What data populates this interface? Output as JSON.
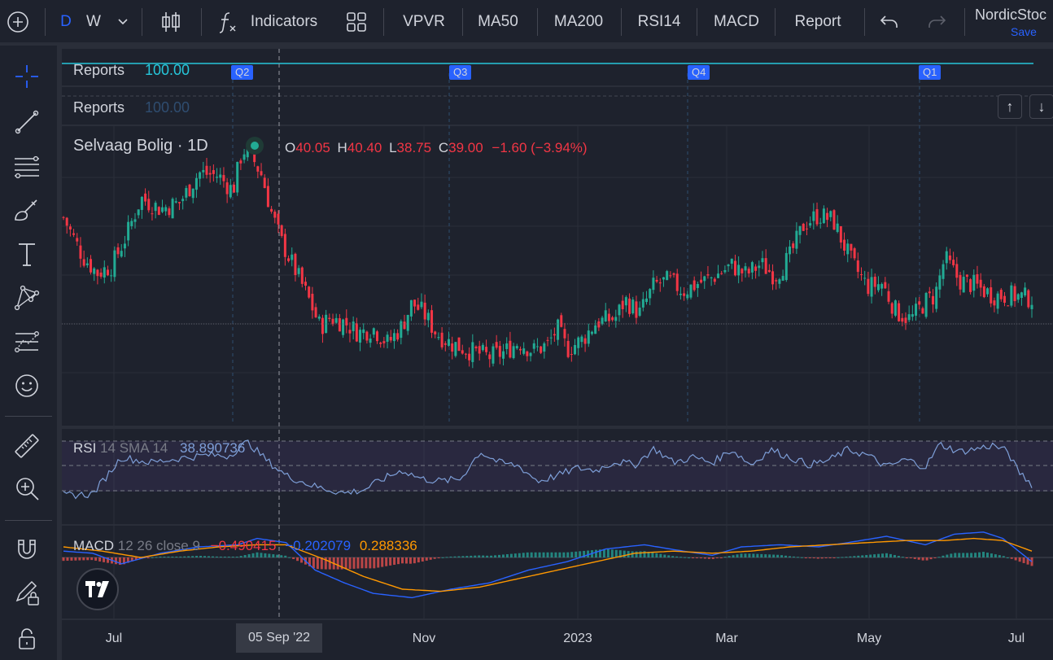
{
  "toolbar": {
    "interval_d": "D",
    "interval_w": "W",
    "indicators_label": "Indicators",
    "quick": [
      "VPVR",
      "MA50",
      "MA200",
      "RSI14",
      "MACD",
      "Report"
    ],
    "layout_name": "NordicStoc",
    "save_label": "Save"
  },
  "reports": {
    "row1_label": "Reports",
    "row1_value": "100.00",
    "row2_label": "Reports",
    "row2_value": "100.00",
    "quarters": [
      "Q2",
      "Q3",
      "Q4",
      "Q1"
    ]
  },
  "symbol": {
    "title": "Selvaag Bolig · 1D",
    "o_label": "O",
    "o_value": "40.05",
    "h_label": "H",
    "h_value": "40.40",
    "l_label": "L",
    "l_value": "38.75",
    "c_label": "C",
    "c_value": "39.00",
    "change": "−1.60 (−3.94%)"
  },
  "rsi": {
    "name": "RSI",
    "params": "14 SMA 14",
    "value": "38.890736"
  },
  "macd": {
    "name": "MACD",
    "params": "12 26 close 9",
    "hist_value": "−0.490415",
    "macd_value": "−0.202079",
    "signal_value": "0.288336"
  },
  "xaxis": {
    "labels": [
      "Jul",
      "Nov",
      "2023",
      "Mar",
      "May",
      "Jul"
    ],
    "crosshair_label": "05 Sep '22"
  },
  "colors": {
    "up": "#22ab94",
    "down": "#f23645",
    "rsi": "#7e9fd8",
    "macd_line": "#2962ff",
    "signal_line": "#ff9800",
    "accent": "#2962ff"
  },
  "chart_data": {
    "type": "candlestick",
    "title": "Selvaag Bolig · 1D",
    "x_range": [
      "2022-06",
      "2023-07"
    ],
    "close_path": [
      [
        0,
        44.2
      ],
      [
        0.02,
        41.6
      ],
      [
        0.035,
        40.5
      ],
      [
        0.05,
        41.0
      ],
      [
        0.065,
        43.0
      ],
      [
        0.08,
        45.5
      ],
      [
        0.1,
        44.8
      ],
      [
        0.12,
        45.2
      ],
      [
        0.14,
        47.2
      ],
      [
        0.16,
        47.0
      ],
      [
        0.175,
        46.0
      ],
      [
        0.185,
        48.8
      ],
      [
        0.195,
        48.2
      ],
      [
        0.205,
        47.0
      ],
      [
        0.215,
        44.5
      ],
      [
        0.225,
        42.6
      ],
      [
        0.24,
        40.6
      ],
      [
        0.255,
        38.5
      ],
      [
        0.265,
        36.9
      ],
      [
        0.275,
        37.5
      ],
      [
        0.29,
        37.2
      ],
      [
        0.305,
        36.5
      ],
      [
        0.32,
        36.8
      ],
      [
        0.335,
        35.8
      ],
      [
        0.35,
        37.0
      ],
      [
        0.36,
        38.5
      ],
      [
        0.372,
        37.8
      ],
      [
        0.385,
        36.5
      ],
      [
        0.4,
        35.8
      ],
      [
        0.42,
        35.3
      ],
      [
        0.44,
        34.9
      ],
      [
        0.455,
        35.2
      ],
      [
        0.47,
        35.9
      ],
      [
        0.485,
        35.3
      ],
      [
        0.5,
        35.7
      ],
      [
        0.51,
        36.8
      ],
      [
        0.52,
        35.4
      ],
      [
        0.535,
        36.0
      ],
      [
        0.55,
        37.2
      ],
      [
        0.57,
        37.5
      ],
      [
        0.58,
        38.7
      ],
      [
        0.595,
        37.8
      ],
      [
        0.61,
        39.7
      ],
      [
        0.625,
        40.0
      ],
      [
        0.64,
        39.3
      ],
      [
        0.655,
        39.8
      ],
      [
        0.67,
        40.2
      ],
      [
        0.69,
        41.0
      ],
      [
        0.705,
        40.4
      ],
      [
        0.72,
        41.1
      ],
      [
        0.735,
        40.3
      ],
      [
        0.75,
        41.6
      ],
      [
        0.765,
        43.8
      ],
      [
        0.78,
        44.4
      ],
      [
        0.795,
        44.0
      ],
      [
        0.805,
        42.5
      ],
      [
        0.815,
        41.1
      ],
      [
        0.83,
        39.6
      ],
      [
        0.845,
        39.8
      ],
      [
        0.86,
        37.9
      ],
      [
        0.875,
        37.4
      ],
      [
        0.89,
        38.6
      ],
      [
        0.9,
        39.0
      ],
      [
        0.91,
        41.5
      ],
      [
        0.925,
        40.0
      ],
      [
        0.94,
        39.7
      ],
      [
        0.96,
        39.0
      ],
      [
        0.98,
        39.0
      ],
      [
        1.0,
        38.8
      ]
    ],
    "y_range_visible": [
      34.0,
      49.5
    ],
    "rsi_path": [
      [
        0,
        30
      ],
      [
        0.03,
        31
      ],
      [
        0.06,
        65
      ],
      [
        0.09,
        60
      ],
      [
        0.12,
        64
      ],
      [
        0.15,
        67
      ],
      [
        0.17,
        66
      ],
      [
        0.19,
        79
      ],
      [
        0.21,
        62
      ],
      [
        0.23,
        48
      ],
      [
        0.26,
        38
      ],
      [
        0.29,
        32
      ],
      [
        0.31,
        35
      ],
      [
        0.33,
        45
      ],
      [
        0.35,
        53
      ],
      [
        0.37,
        45
      ],
      [
        0.39,
        43
      ],
      [
        0.41,
        45
      ],
      [
        0.43,
        70
      ],
      [
        0.45,
        60
      ],
      [
        0.47,
        57
      ],
      [
        0.49,
        43
      ],
      [
        0.51,
        48
      ],
      [
        0.53,
        55
      ],
      [
        0.55,
        53
      ],
      [
        0.57,
        61
      ],
      [
        0.59,
        58
      ],
      [
        0.61,
        73
      ],
      [
        0.63,
        60
      ],
      [
        0.65,
        65
      ],
      [
        0.67,
        60
      ],
      [
        0.69,
        72
      ],
      [
        0.71,
        58
      ],
      [
        0.73,
        72
      ],
      [
        0.75,
        65
      ],
      [
        0.77,
        58
      ],
      [
        0.79,
        62
      ],
      [
        0.81,
        72
      ],
      [
        0.83,
        67
      ],
      [
        0.85,
        56
      ],
      [
        0.87,
        63
      ],
      [
        0.89,
        56
      ],
      [
        0.905,
        77
      ],
      [
        0.925,
        70
      ],
      [
        0.945,
        73
      ],
      [
        0.96,
        76
      ],
      [
        0.975,
        70
      ],
      [
        0.985,
        53
      ],
      [
        1.0,
        40
      ]
    ],
    "macd_path": [
      [
        0,
        0.3
      ],
      [
        0.03,
        0.2
      ],
      [
        0.06,
        -0.3
      ],
      [
        0.1,
        0.2
      ],
      [
        0.14,
        0.5
      ],
      [
        0.18,
        0.6
      ],
      [
        0.2,
        0.9
      ],
      [
        0.23,
        0.7
      ],
      [
        0.26,
        -0.6
      ],
      [
        0.29,
        -1.2
      ],
      [
        0.32,
        -1.7
      ],
      [
        0.36,
        -1.9
      ],
      [
        0.4,
        -1.5
      ],
      [
        0.44,
        -1.2
      ],
      [
        0.48,
        -0.6
      ],
      [
        0.52,
        -0.2
      ],
      [
        0.56,
        0.4
      ],
      [
        0.6,
        0.6
      ],
      [
        0.64,
        0.3
      ],
      [
        0.67,
        0.1
      ],
      [
        0.7,
        0.5
      ],
      [
        0.74,
        0.6
      ],
      [
        0.78,
        0.5
      ],
      [
        0.81,
        0.7
      ],
      [
        0.85,
        1.0
      ],
      [
        0.89,
        0.6
      ],
      [
        0.92,
        1.1
      ],
      [
        0.95,
        1.2
      ],
      [
        0.97,
        0.9
      ],
      [
        1.0,
        -0.2
      ]
    ],
    "signal_path": [
      [
        0,
        0.5
      ],
      [
        0.04,
        0.3
      ],
      [
        0.08,
        0.0
      ],
      [
        0.12,
        0.3
      ],
      [
        0.16,
        0.5
      ],
      [
        0.2,
        0.6
      ],
      [
        0.23,
        0.6
      ],
      [
        0.27,
        -0.1
      ],
      [
        0.31,
        -0.9
      ],
      [
        0.35,
        -1.5
      ],
      [
        0.39,
        -1.6
      ],
      [
        0.43,
        -1.4
      ],
      [
        0.47,
        -1.0
      ],
      [
        0.51,
        -0.6
      ],
      [
        0.55,
        -0.2
      ],
      [
        0.59,
        0.2
      ],
      [
        0.63,
        0.3
      ],
      [
        0.67,
        0.2
      ],
      [
        0.71,
        0.3
      ],
      [
        0.75,
        0.5
      ],
      [
        0.79,
        0.6
      ],
      [
        0.83,
        0.7
      ],
      [
        0.87,
        0.8
      ],
      [
        0.91,
        0.8
      ],
      [
        0.94,
        0.9
      ],
      [
        0.97,
        0.8
      ],
      [
        1.0,
        0.3
      ]
    ]
  }
}
